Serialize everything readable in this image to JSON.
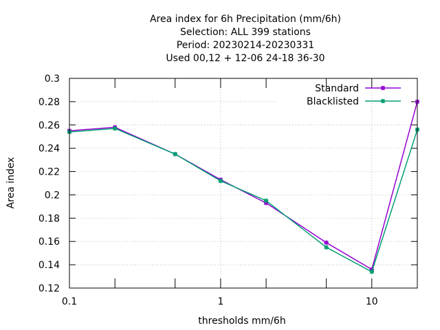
{
  "chart_data": {
    "type": "line",
    "title_lines": [
      "Area index  for 6h Precipitation (mm/6h)",
      "Selection: ALL     399 stations",
      "Period: 20230214-20230331",
      "Used  00,12  + 12-06 24-18 36-30"
    ],
    "xlabel": "thresholds mm/6h",
    "ylabel": "Area index",
    "x_scale": "log",
    "xlim": [
      0.1,
      20
    ],
    "ylim": [
      0.12,
      0.3
    ],
    "x_ticks": [
      {
        "value": 0.1,
        "label": "0.1"
      },
      {
        "value": 1,
        "label": "1"
      },
      {
        "value": 10,
        "label": "10"
      }
    ],
    "x_minor_ticks": [
      0.2,
      0.5,
      2,
      5,
      20
    ],
    "y_ticks": [
      {
        "value": 0.12,
        "label": "0.12"
      },
      {
        "value": 0.14,
        "label": "0.14"
      },
      {
        "value": 0.16,
        "label": "0.16"
      },
      {
        "value": 0.18,
        "label": "0.18"
      },
      {
        "value": 0.2,
        "label": "0.2"
      },
      {
        "value": 0.22,
        "label": "0.22"
      },
      {
        "value": 0.24,
        "label": "0.24"
      },
      {
        "value": 0.26,
        "label": "0.26"
      },
      {
        "value": 0.28,
        "label": "0.28"
      },
      {
        "value": 0.3,
        "label": "0.3"
      }
    ],
    "grid": true,
    "legend_position": "top-right",
    "x": [
      0.1,
      0.2,
      0.5,
      1,
      2,
      5,
      10,
      20
    ],
    "series": [
      {
        "name": "Standard",
        "color": "#9400d3",
        "values": [
          0.255,
          0.258,
          0.235,
          0.213,
          0.193,
          0.159,
          0.136,
          0.28
        ]
      },
      {
        "name": "Blacklisted",
        "color": "#009e73",
        "values": [
          0.254,
          0.257,
          0.235,
          0.212,
          0.195,
          0.155,
          0.134,
          0.256
        ]
      }
    ]
  }
}
